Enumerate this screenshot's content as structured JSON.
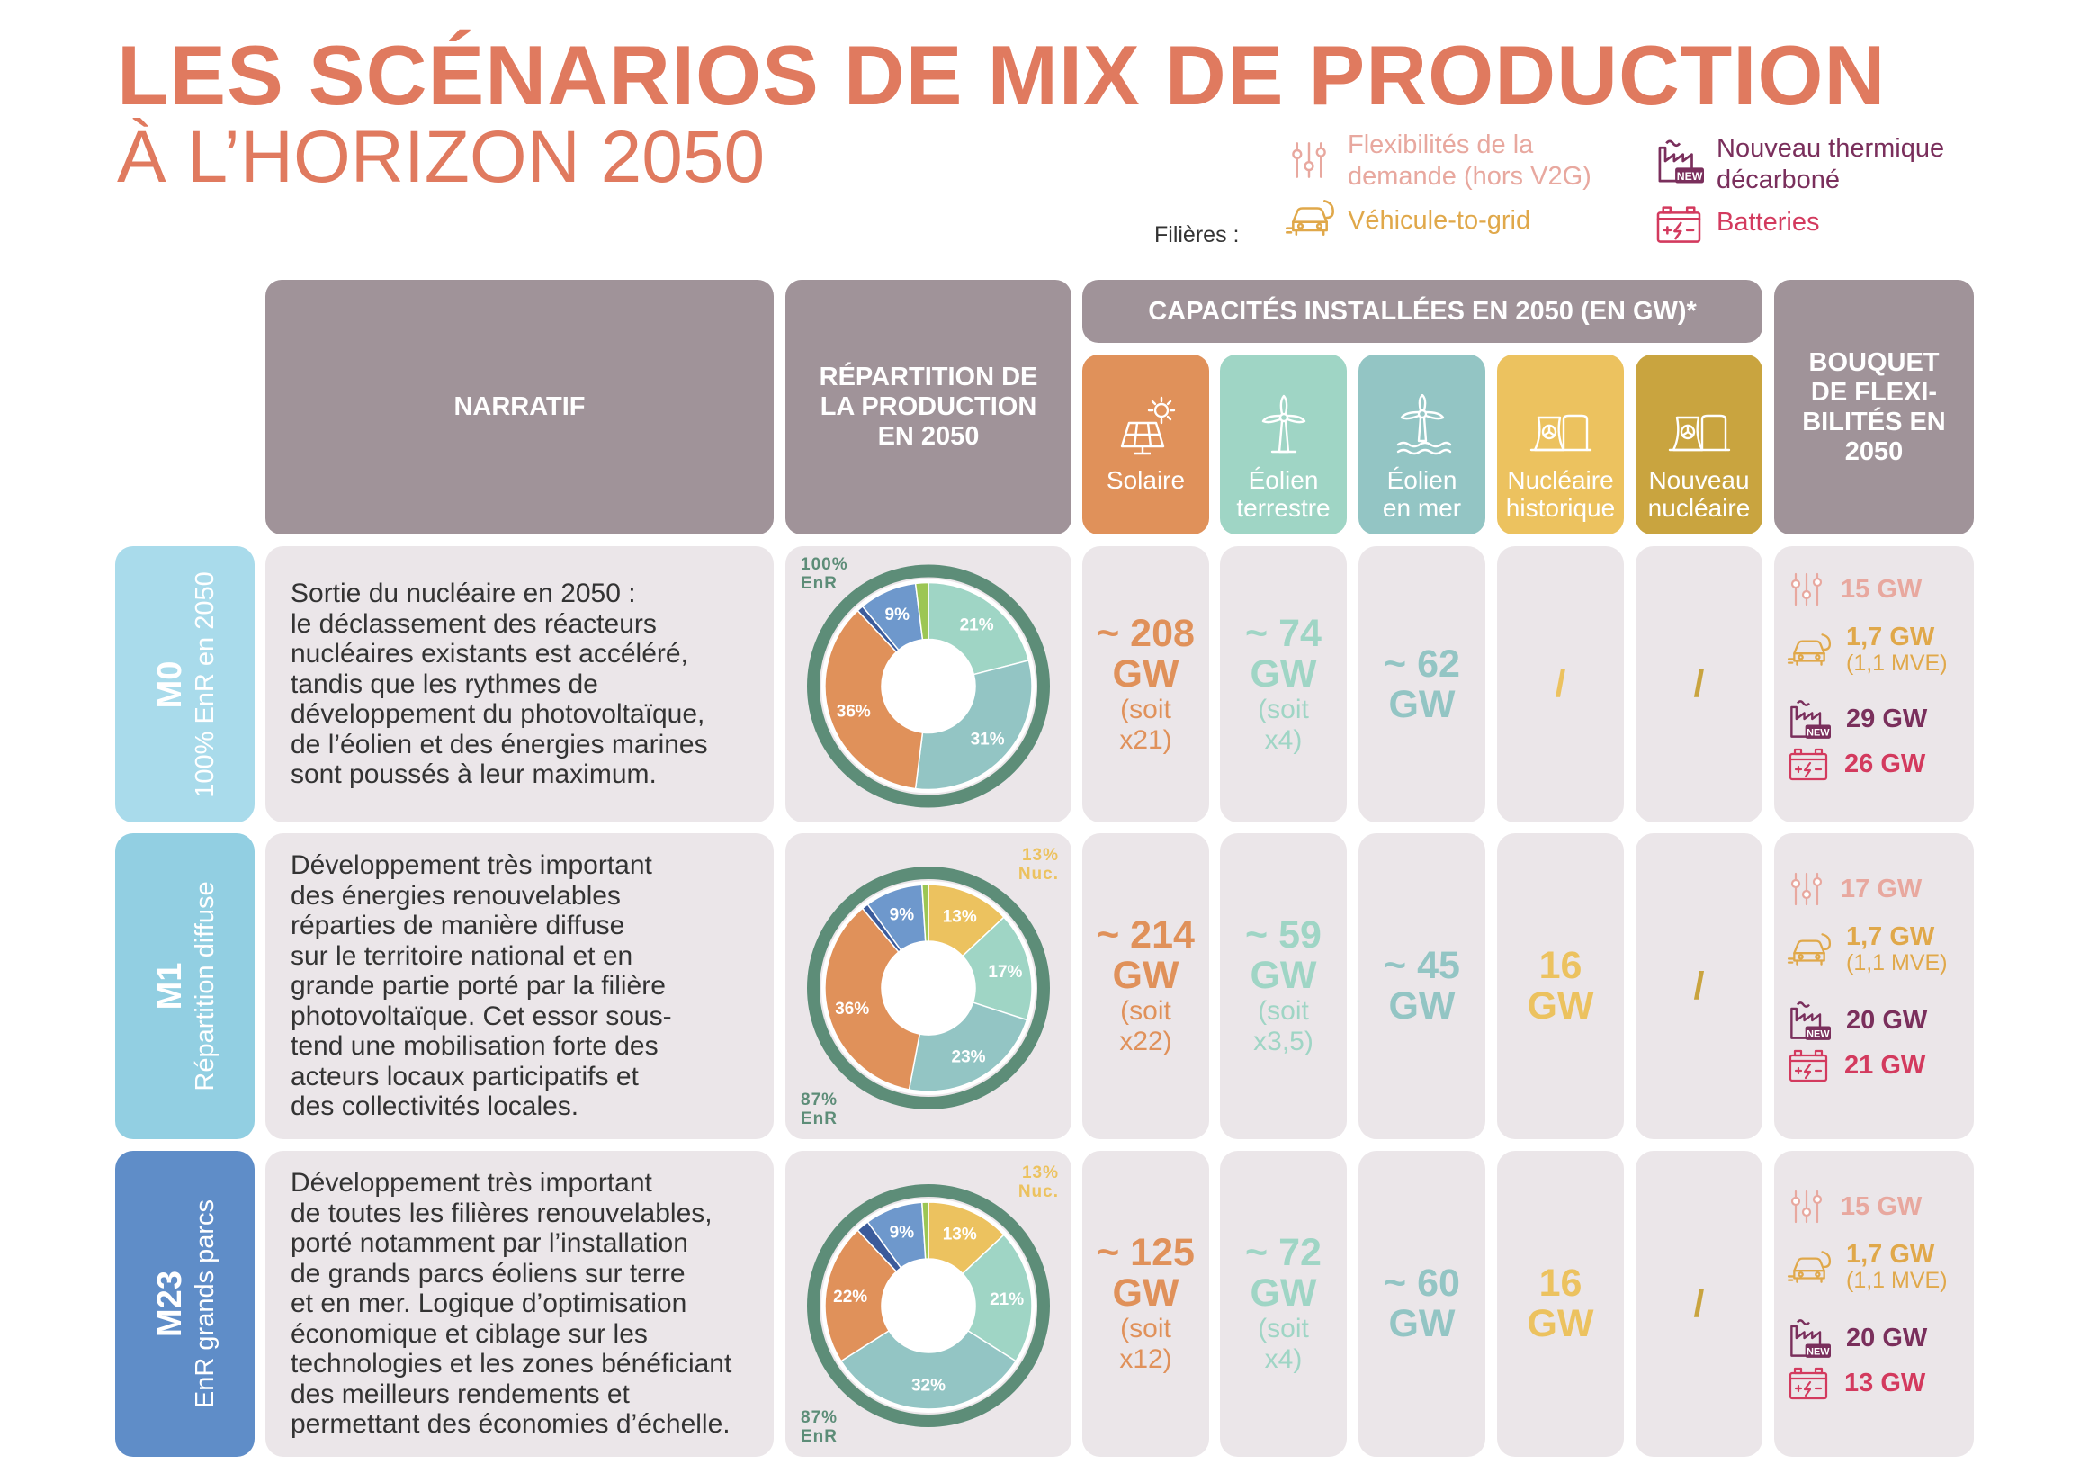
{
  "title": {
    "line1": "LES SCÉNARIOS DE MIX DE PRODUCTION",
    "line2": "À L’HORIZON 2050"
  },
  "legend": {
    "filieres_label": "Filières :",
    "flex_demande": "Flexibilités de la demande (hors V2G)",
    "v2g": "Véhicule-to-grid",
    "thermique": "Nouveau thermique décarboné",
    "batteries": "Batteries",
    "new_badge": "NEW"
  },
  "headers": {
    "narratif": "NARRATIF",
    "repartition": "RÉPARTITION DE LA PRODUCTION EN 2050",
    "capacites": "CAPACITÉS INSTALLÉES EN 2050 (EN GW)*",
    "bouquet": "BOUQUET DE FLEXI- BILITÉS EN 2050",
    "solaire": "Solaire",
    "eolien_terrestre_1": "Éolien",
    "eolien_terrestre_2": "terrestre",
    "eolien_mer_1": "Éolien",
    "eolien_mer_2": "en mer",
    "nucleaire_hist_1": "Nucléaire",
    "nucleaire_hist_2": "historique",
    "nouveau_nuc_1": "Nouveau",
    "nouveau_nuc_2": "nucléaire"
  },
  "colors": {
    "title": "#e07a5f",
    "header_grey": "#a09399",
    "cell_bg": "#ebe6e9",
    "solaire": "#e0915a",
    "eolien_terrestre": "#9fd5c5",
    "eolien_mer": "#93c5c4",
    "nucleaire_hist": "#ecc25f",
    "nouveau_nucleaire": "#c9a43f",
    "flex": "#e8a89f",
    "v2g": "#e0a84a",
    "thermique": "#7a2f5c",
    "batteries": "#d33a5e",
    "ring": "#5d8d78"
  },
  "scenarios": [
    {
      "code": "M0",
      "subtitle": "100% EnR en 2050",
      "color": "#a9dbeb",
      "narratif": [
        "Sortie du nucléaire en 2050 :",
        "le déclassement des réacteurs",
        "nucléaires existants est accéléré,",
        "tandis que les rythmes de",
        "développement du photovoltaïque,",
        "de l’éolien et des énergies marines",
        "sont poussés à leur maximum."
      ],
      "pie": {
        "ring_label_1": "100%",
        "ring_label_2": "EnR",
        "slices": [
          {
            "label": "21%",
            "value": 21,
            "color": "#9fd5c5"
          },
          {
            "label": "31%",
            "value": 31,
            "color": "#93c5c4"
          },
          {
            "label": "36%",
            "value": 36,
            "color": "#e0915a"
          },
          {
            "label": "",
            "value": 1,
            "color": "#3b5b9b"
          },
          {
            "label": "9%",
            "value": 9,
            "color": "#6e98cc"
          },
          {
            "label": "",
            "value": 2,
            "color": "#9cc654"
          }
        ]
      },
      "solaire": {
        "value": "~ 208",
        "unit": "GW",
        "soit1": "(soit",
        "soit2": "x21)"
      },
      "eolien_terrestre": {
        "value": "~ 74",
        "unit": "GW",
        "soit1": "(soit",
        "soit2": "x4)"
      },
      "eolien_mer": {
        "value": "~ 62",
        "unit": "GW"
      },
      "nucleaire_hist": {
        "value": "/"
      },
      "nouveau_nucleaire": {
        "value": "/"
      },
      "flex": {
        "demande": "15 GW",
        "v2g": "1,7 GW",
        "v2g_note": "(1,1 MVE)",
        "thermique": "29 GW",
        "batteries": "26 GW"
      }
    },
    {
      "code": "M1",
      "subtitle": "Répartition diffuse",
      "color": "#92cfe2",
      "narratif": [
        "Développement très important",
        "des énergies renouvelables",
        "réparties de manière diffuse",
        "sur le territoire national et en",
        "grande partie porté par la filière",
        "photovoltaïque. Cet essor sous-",
        "tend une mobilisation forte des",
        "acteurs locaux participatifs et",
        "des collectivités locales."
      ],
      "pie": {
        "ring_label_1": "87%",
        "ring_label_2": "EnR",
        "nuc_label_1": "13%",
        "nuc_label_2": "Nuc.",
        "slices": [
          {
            "label": "13%",
            "value": 13,
            "color": "#ecc25f"
          },
          {
            "label": "17%",
            "value": 17,
            "color": "#9fd5c5"
          },
          {
            "label": "23%",
            "value": 23,
            "color": "#93c5c4"
          },
          {
            "label": "36%",
            "value": 36,
            "color": "#e0915a"
          },
          {
            "label": "",
            "value": 1,
            "color": "#3b5b9b"
          },
          {
            "label": "9%",
            "value": 9,
            "color": "#6e98cc"
          },
          {
            "label": "",
            "value": 1,
            "color": "#9cc654"
          }
        ]
      },
      "solaire": {
        "value": "~ 214",
        "unit": "GW",
        "soit1": "(soit",
        "soit2": "x22)"
      },
      "eolien_terrestre": {
        "value": "~ 59",
        "unit": "GW",
        "soit1": "(soit",
        "soit2": "x3,5)"
      },
      "eolien_mer": {
        "value": "~ 45",
        "unit": "GW"
      },
      "nucleaire_hist": {
        "value": "16",
        "unit": "GW"
      },
      "nouveau_nucleaire": {
        "value": "/"
      },
      "flex": {
        "demande": "17 GW",
        "v2g": "1,7 GW",
        "v2g_note": "(1,1 MVE)",
        "thermique": "20 GW",
        "batteries": "21 GW"
      }
    },
    {
      "code": "M23",
      "subtitle": "EnR grands parcs",
      "color": "#5f8dc8",
      "narratif": [
        "Développement très important",
        "de toutes les filières renouvelables,",
        "porté notamment par l’installation",
        "de grands parcs éoliens sur terre",
        "et en mer. Logique d’optimisation",
        "économique et ciblage sur les",
        "technologies et les zones bénéficiant",
        "des meilleurs rendements et",
        "permettant des économies d’échelle."
      ],
      "pie": {
        "ring_label_1": "87%",
        "ring_label_2": "EnR",
        "nuc_label_1": "13%",
        "nuc_label_2": "Nuc.",
        "slices": [
          {
            "label": "13%",
            "value": 13,
            "color": "#ecc25f"
          },
          {
            "label": "21%",
            "value": 21,
            "color": "#9fd5c5"
          },
          {
            "label": "32%",
            "value": 32,
            "color": "#93c5c4"
          },
          {
            "label": "22%",
            "value": 22,
            "color": "#e0915a"
          },
          {
            "label": "",
            "value": 2,
            "color": "#3b5b9b"
          },
          {
            "label": "9%",
            "value": 9,
            "color": "#6e98cc"
          },
          {
            "label": "",
            "value": 1,
            "color": "#9cc654"
          }
        ]
      },
      "solaire": {
        "value": "~ 125",
        "unit": "GW",
        "soit1": "(soit",
        "soit2": "x12)"
      },
      "eolien_terrestre": {
        "value": "~ 72",
        "unit": "GW",
        "soit1": "(soit",
        "soit2": "x4)"
      },
      "eolien_mer": {
        "value": "~ 60",
        "unit": "GW"
      },
      "nucleaire_hist": {
        "value": "16",
        "unit": "GW"
      },
      "nouveau_nucleaire": {
        "value": "/"
      },
      "flex": {
        "demande": "15 GW",
        "v2g": "1,7 GW",
        "v2g_note": "(1,1 MVE)",
        "thermique": "20 GW",
        "batteries": "13 GW"
      }
    }
  ]
}
